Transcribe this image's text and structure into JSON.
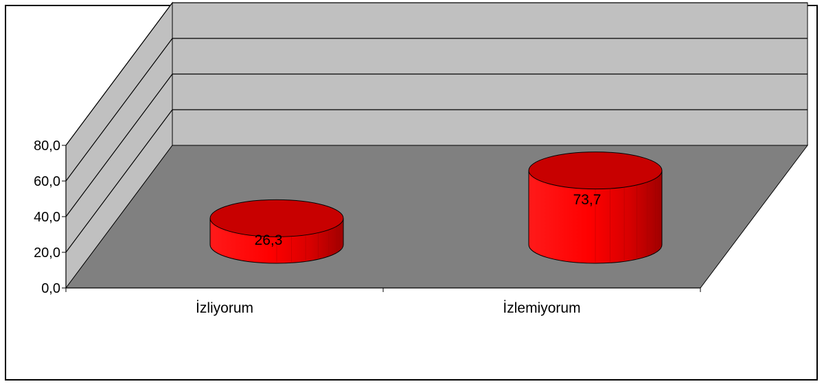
{
  "chart_data": {
    "type": "bar",
    "style": "3d-cylinder",
    "categories": [
      "İzliyorum",
      "İzlemiyorum"
    ],
    "values": [
      26.3,
      73.7
    ],
    "data_labels": [
      "26,3",
      "73,7"
    ],
    "y_ticks": [
      "0,0",
      "20,0",
      "40,0",
      "60,0",
      "80,0"
    ],
    "ylim": [
      0,
      80
    ],
    "grid": true,
    "legend": false,
    "title": "",
    "xlabel": "",
    "ylabel": "",
    "colors": {
      "bar_front": "#ff0000",
      "bar_top": "#c80000",
      "bar_shade": "#a00000",
      "back_wall": "#c0c0c0",
      "side_wall": "#c0c0c0",
      "floor": "#808080",
      "gridline": "#000000",
      "frame": "#000000"
    }
  }
}
